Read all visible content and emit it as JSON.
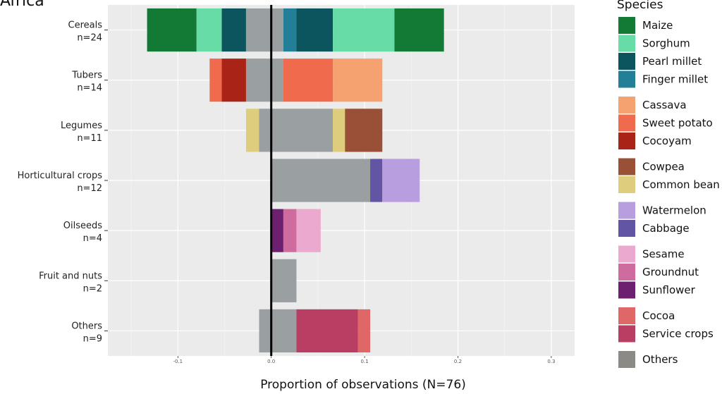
{
  "chart_data": {
    "type": "bar",
    "orientation": "horizontal-stacked-diverging",
    "title": "Africa",
    "xlabel": "Proportion of observations (N=76)",
    "ylabel": "",
    "xlim": [
      -0.175,
      0.325
    ],
    "x_ticks": [
      -0.1,
      0.0,
      0.1,
      0.2,
      0.3
    ],
    "x_tick_labels": [
      "-0.1",
      "0.0",
      "0.1",
      "0.2",
      "0.3"
    ],
    "grid": true,
    "zero_line": true,
    "legend_position": "right",
    "legend_title": "Species",
    "categories": [
      {
        "name": "Cereals",
        "n": "n=24"
      },
      {
        "name": "Tubers",
        "n": "n=14"
      },
      {
        "name": "Legumes",
        "n": "n=11"
      },
      {
        "name": "Horticultural crops",
        "n": "n=12"
      },
      {
        "name": "Oilseeds",
        "n": "n=4"
      },
      {
        "name": "Fruit and nuts",
        "n": "n=2"
      },
      {
        "name": "Others",
        "n": "n=9"
      }
    ],
    "legend": [
      {
        "name": "Maize",
        "color": "#137a36"
      },
      {
        "name": "Sorghum",
        "color": "#68dca6"
      },
      {
        "name": "Pearl millet",
        "color": "#0c555e"
      },
      {
        "name": "Finger millet",
        "color": "#237f97"
      },
      {
        "name": "Cassava",
        "color": "#f5a170"
      },
      {
        "name": "Sweet potato",
        "color": "#f06b4e"
      },
      {
        "name": "Cocoyam",
        "color": "#a92416"
      },
      {
        "name": "Cowpea",
        "color": "#995036"
      },
      {
        "name": "Common bean",
        "color": "#ddcd7c"
      },
      {
        "name": "Watermelon",
        "color": "#b89ddf"
      },
      {
        "name": "Cabbage",
        "color": "#6255a3"
      },
      {
        "name": "Sesame",
        "color": "#eca9cf"
      },
      {
        "name": "Groundnut",
        "color": "#ce6ca0"
      },
      {
        "name": "Sunflower",
        "color": "#6d2070"
      },
      {
        "name": "Cocoa",
        "color": "#e06767"
      },
      {
        "name": "Service crops",
        "color": "#b83f63"
      },
      {
        "name": "Others",
        "color": "#8c8a84"
      }
    ],
    "others_bar_color": "#9a9fa1",
    "segments": [
      [
        {
          "species": "Maize",
          "start": -0.133,
          "end": -0.08
        },
        {
          "species": "Sorghum",
          "start": -0.08,
          "end": -0.053
        },
        {
          "species": "Pearl millet",
          "start": -0.053,
          "end": -0.027
        },
        {
          "species": "Others",
          "start": -0.027,
          "end": 0.013
        },
        {
          "species": "Finger millet",
          "start": 0.013,
          "end": 0.027
        },
        {
          "species": "Pearl millet",
          "start": 0.027,
          "end": 0.066
        },
        {
          "species": "Sorghum",
          "start": 0.066,
          "end": 0.132
        },
        {
          "species": "Maize",
          "start": 0.132,
          "end": 0.185
        }
      ],
      [
        {
          "species": "Sweet potato",
          "start": -0.066,
          "end": -0.053
        },
        {
          "species": "Cocoyam",
          "start": -0.053,
          "end": -0.027
        },
        {
          "species": "Others",
          "start": -0.027,
          "end": 0.013
        },
        {
          "species": "Sweet potato",
          "start": 0.013,
          "end": 0.066
        },
        {
          "species": "Cassava",
          "start": 0.066,
          "end": 0.119
        }
      ],
      [
        {
          "species": "Common bean",
          "start": -0.027,
          "end": -0.013
        },
        {
          "species": "Others",
          "start": -0.013,
          "end": 0.066
        },
        {
          "species": "Common bean",
          "start": 0.066,
          "end": 0.079
        },
        {
          "species": "Cowpea",
          "start": 0.079,
          "end": 0.119
        }
      ],
      [
        {
          "species": "Others",
          "start": 0.0,
          "end": 0.106
        },
        {
          "species": "Cabbage",
          "start": 0.106,
          "end": 0.119
        },
        {
          "species": "Watermelon",
          "start": 0.119,
          "end": 0.159
        }
      ],
      [
        {
          "species": "Sunflower",
          "start": 0.0,
          "end": 0.013
        },
        {
          "species": "Groundnut",
          "start": 0.013,
          "end": 0.027
        },
        {
          "species": "Sesame",
          "start": 0.027,
          "end": 0.053
        }
      ],
      [
        {
          "species": "Others",
          "start": 0.0,
          "end": 0.027
        }
      ],
      [
        {
          "species": "Others",
          "start": -0.013,
          "end": 0.027
        },
        {
          "species": "Service crops",
          "start": 0.027,
          "end": 0.093
        },
        {
          "species": "Cocoa",
          "start": 0.093,
          "end": 0.106
        }
      ]
    ]
  }
}
